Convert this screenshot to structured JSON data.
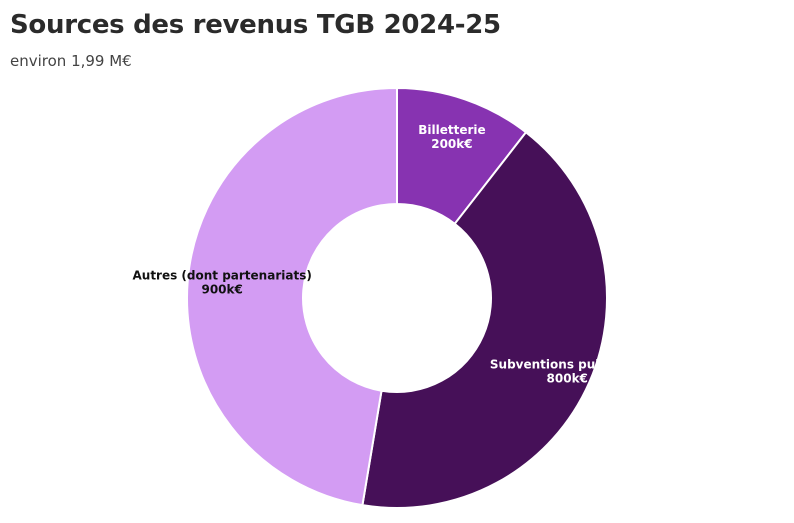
{
  "chart_data": {
    "type": "pie",
    "title": "Sources des revenus TGB 2024-25",
    "subtitle": "environ 1,99 M€",
    "slices": [
      {
        "label": "Billetterie",
        "value": 200,
        "value_label": "200k€",
        "color": "#8733b1",
        "text_color": "#ffffff"
      },
      {
        "label": "Subventions publiques",
        "value": 800,
        "value_label": "800k€",
        "color": "#461058",
        "text_color": "#ffffff"
      },
      {
        "label": "Autres (dont partenariats)",
        "value": 900,
        "value_label": "900k€",
        "color": "#d39cf3",
        "text_color": "#111111"
      }
    ]
  }
}
